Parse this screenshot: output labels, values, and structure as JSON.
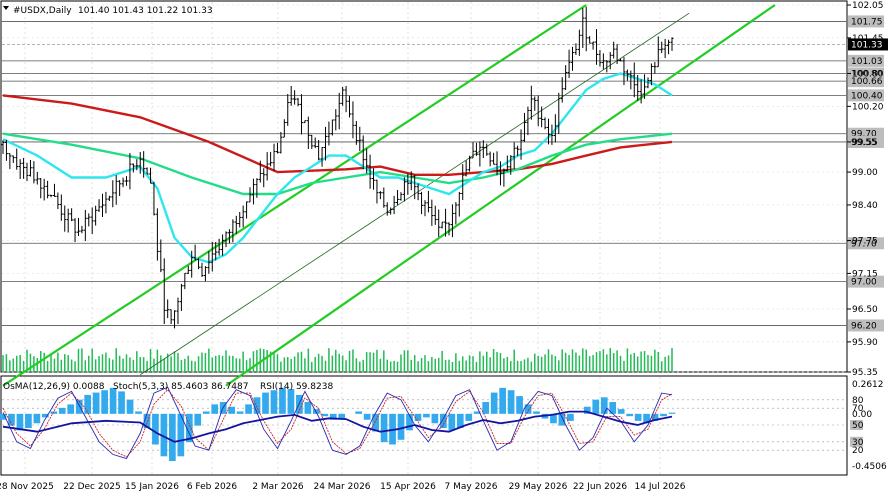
{
  "header": {
    "symbol": "#USDX,Daily",
    "ohlc": "101.40 101.43 101.22 101.33"
  },
  "indicator_header": {
    "osma": "OsMA(12,26,9) 0.0088",
    "stoch": "Stoch(5,3,3) 85.4603 86.7487",
    "rsi": "RSI(14) 59.8238"
  },
  "colors": {
    "background": "#ffffff",
    "candle": "#000000",
    "ema_long": "#cc1a1a",
    "ema_mid": "#22dd88",
    "ema_short": "#2ee6ee",
    "channel": "#22cc22",
    "volume": "#22bb55",
    "osma": "#33aaee",
    "stoch_main": "#2a2ab0",
    "stoch_signal": "#cc2222",
    "rsi": "#1414a0",
    "price_badge_bg": "#000000",
    "price_badge_text": "#ffffff"
  },
  "chart_data": {
    "type": "candlestick",
    "timeframe": "Daily",
    "ylim": [
      95.35,
      102.05
    ],
    "y_ticks": [
      "102.05",
      "101.45",
      "100.80",
      "100.20",
      "99.55",
      "99.00",
      "98.40",
      "97.75",
      "97.15",
      "96.50",
      "95.90",
      "95.35"
    ],
    "x_tick_labels": [
      "28 Nov 2025",
      "22 Dec 2025",
      "15 Jan 2026",
      "6 Feb 2026",
      "2 Mar 2026",
      "24 Mar 2026",
      "15 Apr 2026",
      "7 May 2026",
      "29 May 2026",
      "22 Jun 2026",
      "14 Jul 2026"
    ],
    "grid": true,
    "last_price": "101.33",
    "levels": [
      "101.75",
      "101.03",
      "100.80",
      "100.66",
      "100.40",
      "99.70",
      "99.55",
      "97.70",
      "97.00",
      "96.20"
    ],
    "close_path": [
      [
        0,
        99.5
      ],
      [
        5,
        99.1
      ],
      [
        10,
        98.9
      ],
      [
        14,
        98.6
      ],
      [
        18,
        98.2
      ],
      [
        22,
        97.9
      ],
      [
        26,
        98.2
      ],
      [
        30,
        98.5
      ],
      [
        34,
        98.8
      ],
      [
        38,
        99.1
      ],
      [
        40,
        99.3
      ],
      [
        43,
        98.8
      ],
      [
        45,
        97.6
      ],
      [
        47,
        96.6
      ],
      [
        49,
        96.2
      ],
      [
        52,
        96.9
      ],
      [
        55,
        97.5
      ],
      [
        58,
        97.2
      ],
      [
        61,
        97.5
      ],
      [
        65,
        97.8
      ],
      [
        70,
        98.4
      ],
      [
        75,
        98.9
      ],
      [
        80,
        99.4
      ],
      [
        84,
        100.4
      ],
      [
        88,
        99.9
      ],
      [
        92,
        99.3
      ],
      [
        96,
        99.9
      ],
      [
        99,
        100.4
      ],
      [
        101,
        100.1
      ],
      [
        103,
        99.7
      ],
      [
        106,
        99.1
      ],
      [
        109,
        98.6
      ],
      [
        112,
        98.3
      ],
      [
        115,
        98.6
      ],
      [
        118,
        98.9
      ],
      [
        121,
        98.6
      ],
      [
        124,
        98.3
      ],
      [
        127,
        97.9
      ],
      [
        130,
        98.1
      ],
      [
        133,
        98.7
      ],
      [
        136,
        99.2
      ],
      [
        139,
        99.5
      ],
      [
        142,
        99.3
      ],
      [
        145,
        99.0
      ],
      [
        148,
        99.3
      ],
      [
        151,
        99.6
      ],
      [
        154,
        100.3
      ],
      [
        157,
        100.0
      ],
      [
        160,
        99.6
      ],
      [
        163,
        100.6
      ],
      [
        166,
        101.1
      ],
      [
        169,
        101.7
      ],
      [
        172,
        101.3
      ],
      [
        175,
        101.0
      ],
      [
        178,
        101.2
      ],
      [
        181,
        100.9
      ],
      [
        184,
        100.6
      ],
      [
        187,
        100.5
      ],
      [
        190,
        101.0
      ],
      [
        193,
        101.4
      ],
      [
        195,
        101.33
      ]
    ],
    "ema_long": [
      [
        0,
        100.4
      ],
      [
        20,
        100.25
      ],
      [
        40,
        100.0
      ],
      [
        60,
        99.55
      ],
      [
        80,
        99.0
      ],
      [
        100,
        99.05
      ],
      [
        110,
        99.1
      ],
      [
        120,
        98.95
      ],
      [
        130,
        98.95
      ],
      [
        140,
        99.0
      ],
      [
        150,
        99.05
      ],
      [
        160,
        99.15
      ],
      [
        170,
        99.3
      ],
      [
        180,
        99.45
      ],
      [
        195,
        99.55
      ]
    ],
    "ema_mid": [
      [
        0,
        99.7
      ],
      [
        20,
        99.5
      ],
      [
        40,
        99.25
      ],
      [
        55,
        98.9
      ],
      [
        70,
        98.6
      ],
      [
        80,
        98.6
      ],
      [
        90,
        98.8
      ],
      [
        100,
        98.9
      ],
      [
        110,
        99.0
      ],
      [
        120,
        98.9
      ],
      [
        130,
        98.8
      ],
      [
        140,
        98.9
      ],
      [
        150,
        99.05
      ],
      [
        160,
        99.3
      ],
      [
        170,
        99.5
      ],
      [
        180,
        99.6
      ],
      [
        195,
        99.7
      ]
    ],
    "ema_short": [
      [
        0,
        99.6
      ],
      [
        10,
        99.3
      ],
      [
        20,
        98.9
      ],
      [
        30,
        98.9
      ],
      [
        40,
        99.1
      ],
      [
        45,
        98.7
      ],
      [
        50,
        97.8
      ],
      [
        55,
        97.45
      ],
      [
        60,
        97.35
      ],
      [
        65,
        97.5
      ],
      [
        70,
        97.8
      ],
      [
        75,
        98.2
      ],
      [
        80,
        98.6
      ],
      [
        85,
        98.9
      ],
      [
        90,
        99.1
      ],
      [
        95,
        99.3
      ],
      [
        100,
        99.3
      ],
      [
        105,
        99.1
      ],
      [
        110,
        98.9
      ],
      [
        115,
        98.9
      ],
      [
        120,
        98.8
      ],
      [
        125,
        98.7
      ],
      [
        130,
        98.6
      ],
      [
        135,
        98.8
      ],
      [
        140,
        99.0
      ],
      [
        145,
        99.1
      ],
      [
        150,
        99.3
      ],
      [
        155,
        99.4
      ],
      [
        160,
        99.7
      ],
      [
        165,
        100.1
      ],
      [
        170,
        100.5
      ],
      [
        175,
        100.7
      ],
      [
        180,
        100.8
      ],
      [
        185,
        100.7
      ],
      [
        190,
        100.6
      ],
      [
        195,
        100.4
      ]
    ],
    "channel_lines": [
      {
        "name": "",
        "points": [
          [
            0,
            95.1
          ],
          [
            170,
            102.05
          ]
        ]
      },
      {
        "name": "",
        "points": [
          [
            65,
            95.1
          ],
          [
            225,
            102.05
          ]
        ]
      },
      {
        "name": "",
        "points": [
          [
            40,
            95.3
          ],
          [
            200,
            101.9
          ]
        ],
        "style": "thin"
      }
    ],
    "osma_levels": [
      "0.2612",
      "0.00",
      "-0.4506"
    ],
    "oscillator_levels": [
      "80",
      "70",
      "50",
      "30",
      "20"
    ],
    "osma_values": [
      -0.05,
      -0.1,
      -0.14,
      -0.12,
      -0.08,
      -0.03,
      0.02,
      0.05,
      0.08,
      0.12,
      0.16,
      0.18,
      0.2,
      0.22,
      0.19,
      0.12,
      0.02,
      -0.12,
      -0.26,
      -0.36,
      -0.4,
      -0.36,
      -0.24,
      -0.1,
      0.02,
      0.08,
      0.1,
      0.06,
      0.02,
      0.08,
      0.14,
      0.18,
      0.2,
      0.22,
      0.21,
      0.16,
      0.1,
      0.04,
      -0.02,
      -0.05,
      -0.04,
      0.0,
      0.02,
      -0.05,
      -0.15,
      -0.24,
      -0.26,
      -0.22,
      -0.14,
      -0.06,
      -0.03,
      -0.08,
      -0.12,
      -0.14,
      -0.12,
      -0.06,
      0.02,
      0.1,
      0.18,
      0.22,
      0.2,
      0.15,
      0.08,
      0.02,
      -0.04,
      -0.08,
      -0.1,
      -0.06,
      0.0,
      0.06,
      0.12,
      0.14,
      0.1,
      0.04,
      -0.02,
      -0.06,
      -0.08,
      -0.06,
      -0.02,
      0.01
    ],
    "stoch_main": [
      [
        0,
        65
      ],
      [
        4,
        30
      ],
      [
        8,
        22
      ],
      [
        12,
        55
      ],
      [
        16,
        82
      ],
      [
        20,
        90
      ],
      [
        24,
        60
      ],
      [
        28,
        30
      ],
      [
        32,
        15
      ],
      [
        36,
        10
      ],
      [
        40,
        40
      ],
      [
        44,
        88
      ],
      [
        48,
        95
      ],
      [
        52,
        60
      ],
      [
        56,
        25
      ],
      [
        60,
        20
      ],
      [
        64,
        70
      ],
      [
        68,
        92
      ],
      [
        72,
        85
      ],
      [
        76,
        45
      ],
      [
        80,
        22
      ],
      [
        84,
        55
      ],
      [
        88,
        90
      ],
      [
        92,
        60
      ],
      [
        96,
        20
      ],
      [
        100,
        15
      ],
      [
        104,
        25
      ],
      [
        108,
        60
      ],
      [
        112,
        88
      ],
      [
        116,
        80
      ],
      [
        120,
        50
      ],
      [
        124,
        30
      ],
      [
        128,
        55
      ],
      [
        132,
        85
      ],
      [
        136,
        92
      ],
      [
        140,
        55
      ],
      [
        144,
        20
      ],
      [
        148,
        30
      ],
      [
        152,
        70
      ],
      [
        156,
        90
      ],
      [
        160,
        85
      ],
      [
        164,
        50
      ],
      [
        168,
        20
      ],
      [
        172,
        35
      ],
      [
        176,
        70
      ],
      [
        180,
        55
      ],
      [
        184,
        30
      ],
      [
        188,
        50
      ],
      [
        192,
        88
      ],
      [
        195,
        86
      ]
    ],
    "stoch_signal": [
      [
        0,
        70
      ],
      [
        4,
        40
      ],
      [
        8,
        25
      ],
      [
        12,
        45
      ],
      [
        16,
        75
      ],
      [
        20,
        88
      ],
      [
        24,
        70
      ],
      [
        28,
        40
      ],
      [
        32,
        20
      ],
      [
        36,
        12
      ],
      [
        40,
        30
      ],
      [
        44,
        75
      ],
      [
        48,
        92
      ],
      [
        52,
        72
      ],
      [
        56,
        35
      ],
      [
        60,
        20
      ],
      [
        64,
        55
      ],
      [
        68,
        88
      ],
      [
        72,
        88
      ],
      [
        76,
        55
      ],
      [
        80,
        28
      ],
      [
        84,
        45
      ],
      [
        88,
        82
      ],
      [
        92,
        70
      ],
      [
        96,
        30
      ],
      [
        100,
        16
      ],
      [
        104,
        22
      ],
      [
        108,
        50
      ],
      [
        112,
        82
      ],
      [
        116,
        84
      ],
      [
        120,
        60
      ],
      [
        124,
        35
      ],
      [
        128,
        48
      ],
      [
        132,
        78
      ],
      [
        136,
        90
      ],
      [
        140,
        65
      ],
      [
        144,
        28
      ],
      [
        148,
        28
      ],
      [
        152,
        60
      ],
      [
        156,
        85
      ],
      [
        160,
        88
      ],
      [
        164,
        60
      ],
      [
        168,
        28
      ],
      [
        172,
        30
      ],
      [
        176,
        60
      ],
      [
        180,
        60
      ],
      [
        184,
        38
      ],
      [
        188,
        45
      ],
      [
        192,
        80
      ],
      [
        195,
        87
      ]
    ],
    "rsi_values": [
      [
        0,
        48
      ],
      [
        10,
        42
      ],
      [
        20,
        52
      ],
      [
        30,
        55
      ],
      [
        40,
        53
      ],
      [
        45,
        40
      ],
      [
        50,
        30
      ],
      [
        55,
        34
      ],
      [
        60,
        40
      ],
      [
        65,
        45
      ],
      [
        70,
        52
      ],
      [
        80,
        60
      ],
      [
        85,
        62
      ],
      [
        90,
        55
      ],
      [
        95,
        58
      ],
      [
        100,
        57
      ],
      [
        105,
        48
      ],
      [
        110,
        42
      ],
      [
        115,
        45
      ],
      [
        120,
        50
      ],
      [
        125,
        44
      ],
      [
        130,
        42
      ],
      [
        135,
        50
      ],
      [
        140,
        56
      ],
      [
        145,
        52
      ],
      [
        150,
        55
      ],
      [
        155,
        60
      ],
      [
        160,
        62
      ],
      [
        165,
        66
      ],
      [
        170,
        66
      ],
      [
        175,
        60
      ],
      [
        180,
        54
      ],
      [
        185,
        50
      ],
      [
        190,
        56
      ],
      [
        195,
        60
      ]
    ]
  }
}
